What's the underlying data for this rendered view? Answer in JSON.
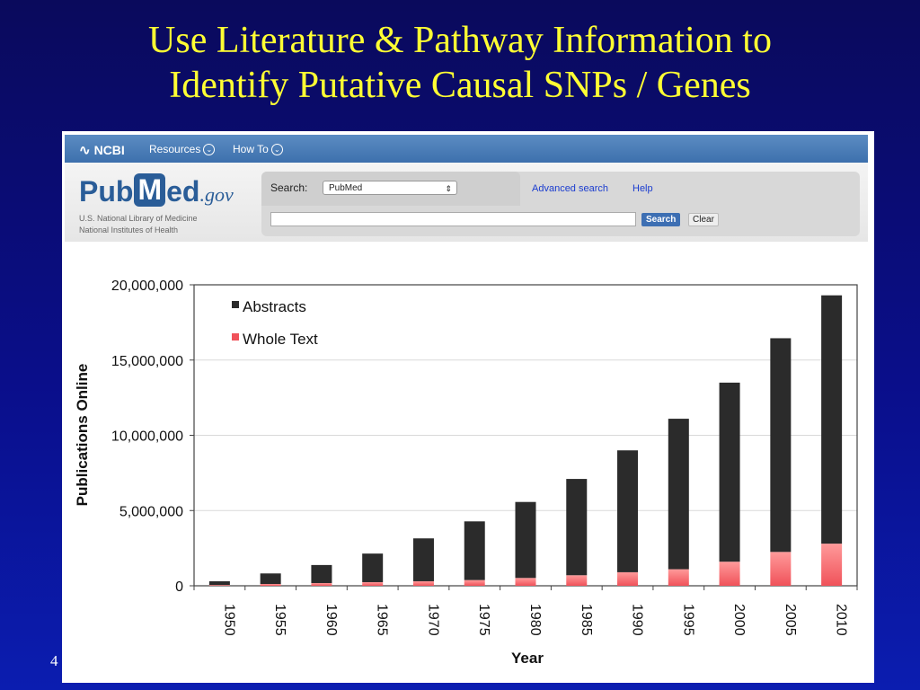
{
  "slide": {
    "title_line1": "Use Literature & Pathway Information to",
    "title_line2": "Identify Putative Causal SNPs / Genes",
    "slide_number": "4"
  },
  "ncbi_bar": {
    "logo": "NCBI",
    "resources_label": "Resources",
    "howto_label": "How To"
  },
  "pubmed": {
    "logo_pub": "Pub",
    "logo_m": "M",
    "logo_ed": "ed",
    "logo_gov": ".gov",
    "nlm_line1": "U.S. National Library of Medicine",
    "nlm_line2": "National Institutes of Health",
    "search_label": "Search:",
    "database_value": "PubMed",
    "search_value": "",
    "advanced_search_label": "Advanced search",
    "help_label": "Help",
    "search_button": "Search",
    "clear_button": "Clear"
  },
  "colors": {
    "abstracts": "#2b2b2b",
    "whole_text": "#f0525a",
    "title_yellow": "#ffff33",
    "ncbi_blue": "#3d70ad"
  },
  "chart_data": {
    "type": "bar",
    "stacked": true,
    "categories": [
      "1950",
      "1955",
      "1960",
      "1965",
      "1970",
      "1975",
      "1980",
      "1985",
      "1990",
      "1995",
      "2000",
      "2005",
      "2010"
    ],
    "series": [
      {
        "name": "Abstracts",
        "values": [
          250000,
          700000,
          1200000,
          1900000,
          2850000,
          3900000,
          5050000,
          6400000,
          8100000,
          10000000,
          11900000,
          14200000,
          16500000
        ]
      },
      {
        "name": "Whole Text",
        "values": [
          50000,
          120000,
          180000,
          240000,
          300000,
          380000,
          520000,
          700000,
          900000,
          1100000,
          1600000,
          2250000,
          2800000
        ]
      }
    ],
    "xlabel": "Year",
    "ylabel": "Publications Online",
    "ylim": [
      0,
      20000000
    ],
    "yticks": [
      "0",
      "5,000,000",
      "10,000,000",
      "15,000,000",
      "20,000,000"
    ],
    "legend_position": "top-left",
    "grid": true
  }
}
